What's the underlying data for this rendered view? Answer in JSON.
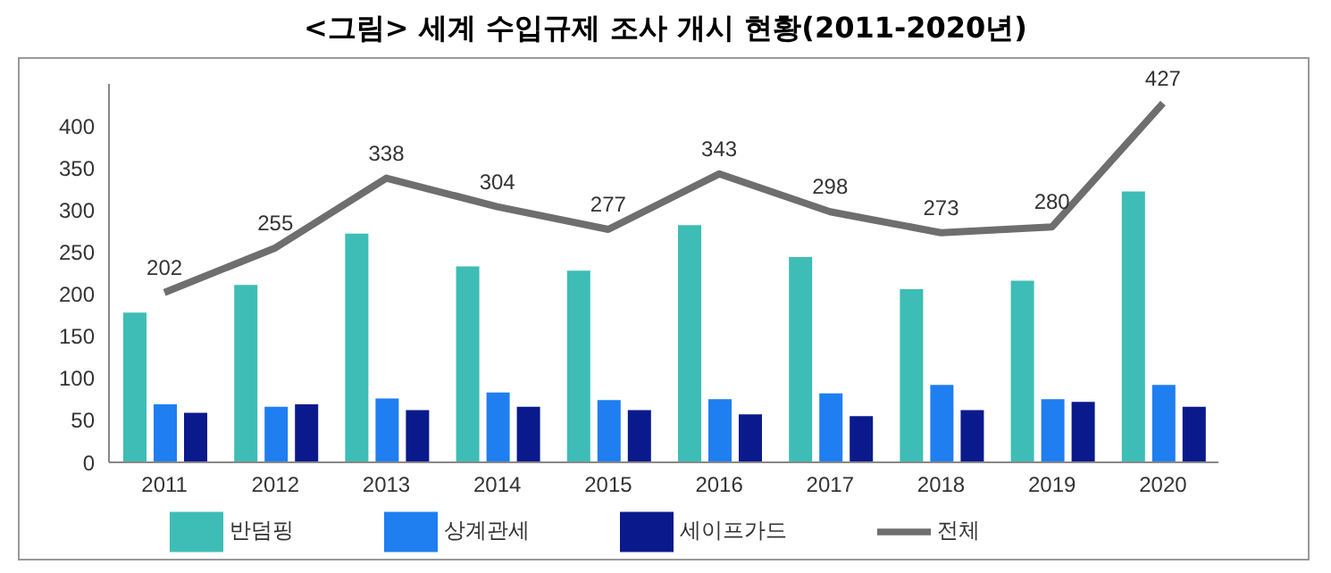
{
  "chart_data": {
    "type": "bar",
    "title": "<그림> 세계 수입규제 조사 개시 현황(2011-2020년)",
    "categories": [
      "2011",
      "2012",
      "2013",
      "2014",
      "2015",
      "2016",
      "2017",
      "2018",
      "2019",
      "2020"
    ],
    "series": [
      {
        "name": "반덤핑",
        "color": "#3dbdb5",
        "values": [
          178,
          211,
          272,
          233,
          228,
          282,
          244,
          206,
          216,
          322
        ]
      },
      {
        "name": "상계관세",
        "color": "#1f7ef0",
        "values": [
          69,
          66,
          76,
          83,
          74,
          75,
          82,
          92,
          75,
          92
        ]
      },
      {
        "name": "세이프가드",
        "color": "#0a1a8c",
        "values": [
          59,
          69,
          62,
          66,
          62,
          57,
          55,
          62,
          72,
          66
        ]
      },
      {
        "name": "전체",
        "type": "line",
        "color": "#6e6e6e",
        "values": [
          202,
          255,
          338,
          304,
          277,
          343,
          298,
          273,
          280,
          427
        ],
        "data_labels": true
      }
    ],
    "ylim": [
      0,
      450
    ],
    "yticks": [
      0,
      50,
      100,
      150,
      200,
      250,
      300,
      350,
      400
    ],
    "grid": false,
    "legend": "bottom",
    "marker": "none"
  }
}
